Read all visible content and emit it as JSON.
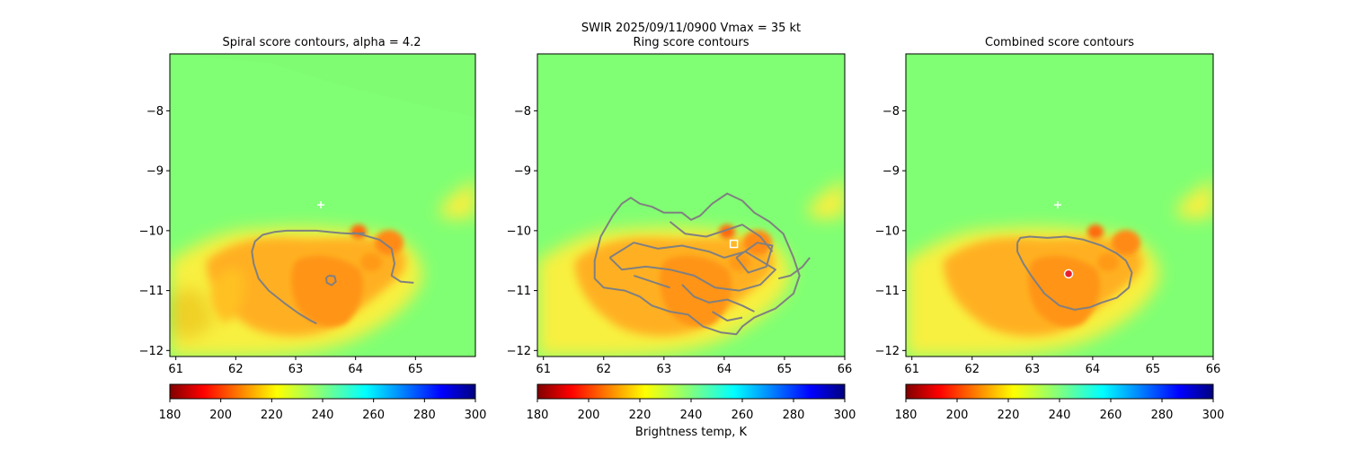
{
  "figure": {
    "suptitle_line1": "SWIR  2025/09/11/0900    Vmax = 35 kt",
    "colorbar_label": "Brightness temp, K"
  },
  "colors": {
    "background_field": "#80ff74",
    "contour": "#808080",
    "center_marker": "#ffffff",
    "combined_marker": "#e8202c"
  },
  "colormap": {
    "name": "jet_r",
    "range": [
      180,
      300
    ],
    "ticks": [
      "180",
      "200",
      "220",
      "240",
      "260",
      "280",
      "300"
    ]
  },
  "chart_data": [
    {
      "type": "heatmap",
      "title": "Spiral score contours, alpha =  4.2",
      "xlim": [
        60.9,
        66.0
      ],
      "ylim": [
        -12.1,
        -7.05
      ],
      "xticks": [
        "61",
        "62",
        "63",
        "64",
        "65"
      ],
      "yticks": [
        "−8",
        "−9",
        "−10",
        "−11",
        "−12"
      ],
      "first_guess_center": {
        "x": 63.42,
        "y": -9.57
      },
      "score_contours": [
        [
          [
            64.15,
            -10.04
          ],
          [
            63.95,
            -10.05
          ],
          [
            63.75,
            -10.04
          ],
          [
            63.55,
            -10.02
          ],
          [
            63.35,
            -10.0
          ],
          [
            63.1,
            -10.0
          ],
          [
            62.85,
            -10.0
          ],
          [
            62.65,
            -10.02
          ],
          [
            62.45,
            -10.07
          ],
          [
            62.32,
            -10.18
          ],
          [
            62.27,
            -10.35
          ],
          [
            62.3,
            -10.55
          ],
          [
            62.38,
            -10.8
          ],
          [
            62.55,
            -11.0
          ],
          [
            62.8,
            -11.2
          ],
          [
            63.05,
            -11.38
          ],
          [
            63.25,
            -11.5
          ],
          [
            63.35,
            -11.55
          ]
        ],
        [
          [
            63.55,
            -10.75
          ],
          [
            63.65,
            -10.76
          ],
          [
            63.67,
            -10.85
          ],
          [
            63.6,
            -10.91
          ],
          [
            63.52,
            -10.87
          ],
          [
            63.51,
            -10.79
          ],
          [
            63.55,
            -10.75
          ]
        ],
        [
          [
            63.95,
            -10.03
          ],
          [
            64.15,
            -10.08
          ],
          [
            64.4,
            -10.15
          ],
          [
            64.6,
            -10.3
          ],
          [
            64.65,
            -10.55
          ],
          [
            64.6,
            -10.75
          ],
          [
            64.75,
            -10.85
          ],
          [
            64.97,
            -10.87
          ]
        ]
      ]
    },
    {
      "type": "heatmap",
      "title": "Ring score contours",
      "xlim": [
        60.9,
        66.0
      ],
      "ylim": [
        -12.1,
        -7.05
      ],
      "xticks": [
        "61",
        "62",
        "63",
        "64",
        "65",
        "66"
      ],
      "yticks": [
        "−8",
        "−9",
        "−10",
        "−11",
        "−12"
      ],
      "ring_center": {
        "x": 64.16,
        "y": -10.22
      },
      "score_contours": [
        [
          [
            61.95,
            -10.1
          ],
          [
            62.15,
            -9.75
          ],
          [
            62.3,
            -9.55
          ],
          [
            62.45,
            -9.45
          ],
          [
            62.6,
            -9.55
          ],
          [
            62.8,
            -9.6
          ],
          [
            63.0,
            -9.7
          ],
          [
            63.3,
            -9.7
          ],
          [
            63.45,
            -9.82
          ],
          [
            63.6,
            -9.75
          ],
          [
            63.8,
            -9.55
          ],
          [
            64.05,
            -9.38
          ],
          [
            64.3,
            -9.5
          ],
          [
            64.5,
            -9.7
          ],
          [
            64.75,
            -9.85
          ],
          [
            64.98,
            -10.05
          ],
          [
            65.15,
            -10.45
          ],
          [
            65.25,
            -10.75
          ],
          [
            65.15,
            -11.05
          ],
          [
            64.85,
            -11.3
          ],
          [
            64.5,
            -11.45
          ],
          [
            64.3,
            -11.6
          ],
          [
            64.2,
            -11.73
          ],
          [
            63.95,
            -11.7
          ],
          [
            63.65,
            -11.6
          ],
          [
            63.4,
            -11.4
          ],
          [
            63.1,
            -11.35
          ],
          [
            62.8,
            -11.25
          ],
          [
            62.6,
            -11.1
          ],
          [
            62.35,
            -11.0
          ],
          [
            62.0,
            -10.95
          ],
          [
            61.85,
            -10.8
          ],
          [
            61.85,
            -10.5
          ],
          [
            61.95,
            -10.1
          ]
        ],
        [
          [
            62.1,
            -10.45
          ],
          [
            62.5,
            -10.2
          ],
          [
            62.9,
            -10.3
          ],
          [
            63.3,
            -10.25
          ],
          [
            63.75,
            -10.35
          ],
          [
            64.0,
            -10.45
          ],
          [
            64.35,
            -10.35
          ],
          [
            64.6,
            -10.5
          ],
          [
            64.85,
            -10.65
          ],
          [
            64.6,
            -10.9
          ],
          [
            64.25,
            -11.0
          ],
          [
            63.85,
            -10.95
          ],
          [
            63.5,
            -10.75
          ],
          [
            63.1,
            -10.65
          ],
          [
            62.7,
            -10.6
          ],
          [
            62.3,
            -10.65
          ],
          [
            62.1,
            -10.45
          ]
        ],
        [
          [
            63.1,
            -9.85
          ],
          [
            63.35,
            -10.05
          ],
          [
            63.7,
            -10.1
          ],
          [
            64.0,
            -10.0
          ],
          [
            64.3,
            -9.9
          ],
          [
            64.6,
            -10.1
          ],
          [
            64.8,
            -10.35
          ]
        ],
        [
          [
            63.3,
            -10.9
          ],
          [
            63.5,
            -11.1
          ],
          [
            63.75,
            -11.2
          ],
          [
            64.05,
            -11.15
          ],
          [
            64.3,
            -11.25
          ],
          [
            64.5,
            -11.35
          ]
        ],
        [
          [
            62.5,
            -10.75
          ],
          [
            62.8,
            -10.85
          ],
          [
            63.1,
            -10.95
          ]
        ],
        [
          [
            64.2,
            -10.45
          ],
          [
            64.55,
            -10.2
          ],
          [
            64.8,
            -10.25
          ],
          [
            64.7,
            -10.6
          ],
          [
            64.4,
            -10.7
          ],
          [
            64.2,
            -10.45
          ]
        ],
        [
          [
            63.8,
            -11.35
          ],
          [
            64.05,
            -11.5
          ],
          [
            64.3,
            -11.45
          ]
        ],
        [
          [
            64.9,
            -10.8
          ],
          [
            65.1,
            -10.75
          ],
          [
            65.3,
            -10.6
          ],
          [
            65.42,
            -10.45
          ]
        ]
      ]
    },
    {
      "type": "heatmap",
      "title": "Combined score contours",
      "xlim": [
        60.9,
        66.0
      ],
      "ylim": [
        -12.1,
        -7.05
      ],
      "xticks": [
        "61",
        "62",
        "63",
        "64",
        "65",
        "66"
      ],
      "yticks": [
        "−8",
        "−9",
        "−10",
        "−11",
        "−12"
      ],
      "first_guess_center": {
        "x": 63.42,
        "y": -9.57
      },
      "combined_center": {
        "x": 63.6,
        "y": -10.72
      },
      "score_contours": [
        [
          [
            62.75,
            -10.2
          ],
          [
            62.8,
            -10.12
          ],
          [
            62.95,
            -10.1
          ],
          [
            63.25,
            -10.12
          ],
          [
            63.55,
            -10.1
          ],
          [
            63.85,
            -10.15
          ],
          [
            64.15,
            -10.25
          ],
          [
            64.4,
            -10.38
          ],
          [
            64.55,
            -10.5
          ],
          [
            64.65,
            -10.7
          ],
          [
            64.6,
            -10.95
          ],
          [
            64.4,
            -11.12
          ],
          [
            64.15,
            -11.2
          ],
          [
            63.95,
            -11.28
          ],
          [
            63.7,
            -11.32
          ],
          [
            63.45,
            -11.25
          ],
          [
            63.2,
            -11.05
          ],
          [
            63.0,
            -10.78
          ],
          [
            62.85,
            -10.55
          ],
          [
            62.75,
            -10.35
          ],
          [
            62.75,
            -10.2
          ]
        ]
      ]
    }
  ]
}
